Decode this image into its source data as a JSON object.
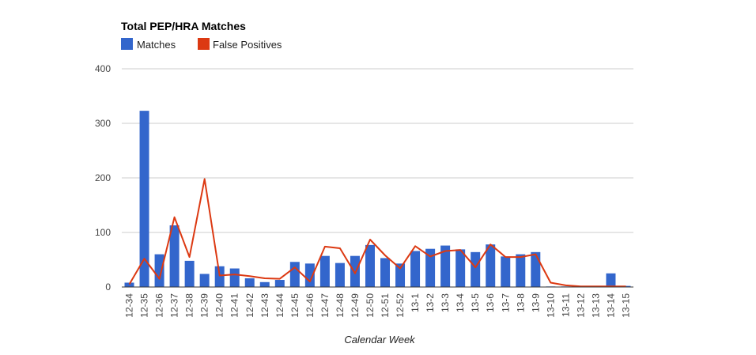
{
  "chart_data": {
    "type": "bar",
    "title": "Total PEP/HRA Matches",
    "xlabel": "Calendar Week",
    "ylabel": "",
    "ylim": [
      0,
      400
    ],
    "yticks": [
      0,
      100,
      200,
      300,
      400
    ],
    "grid": true,
    "legend": "top-left",
    "categories": [
      "12-34",
      "12-35",
      "12-36",
      "12-37",
      "12-38",
      "12-39",
      "12-40",
      "12-41",
      "12-42",
      "12-43",
      "12-44",
      "12-45",
      "12-46",
      "12-47",
      "12-48",
      "12-49",
      "12-50",
      "12-51",
      "12-52",
      "13-1",
      "13-2",
      "13-3",
      "13-4",
      "13-5",
      "13-6",
      "13-7",
      "13-8",
      "13-9",
      "13-10",
      "13-11",
      "13-12",
      "13-13",
      "13-14",
      "13-15"
    ],
    "series": [
      {
        "name": "Matches",
        "type": "bar",
        "color": "#3366cc",
        "values": [
          8,
          323,
          60,
          113,
          48,
          24,
          38,
          34,
          16,
          9,
          13,
          46,
          43,
          57,
          44,
          57,
          77,
          53,
          43,
          66,
          70,
          76,
          69,
          64,
          78,
          56,
          60,
          64,
          1,
          1,
          1,
          1,
          25,
          2
        ]
      },
      {
        "name": "False Positives",
        "type": "line",
        "color": "#dc3912",
        "values": [
          5,
          52,
          15,
          128,
          55,
          198,
          21,
          23,
          20,
          16,
          15,
          36,
          10,
          74,
          71,
          25,
          87,
          58,
          34,
          75,
          56,
          66,
          68,
          36,
          78,
          55,
          55,
          60,
          8,
          3,
          1,
          1,
          1,
          1
        ]
      }
    ]
  },
  "colors": {
    "grid": "#cccccc",
    "axis": "#333333"
  }
}
